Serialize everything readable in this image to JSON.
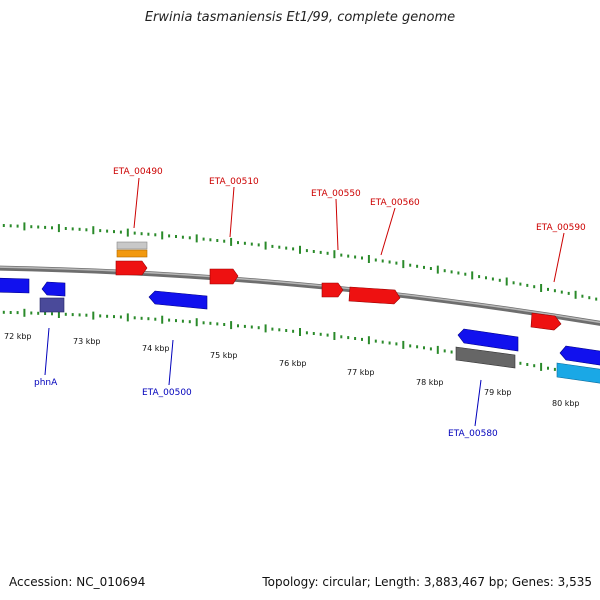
{
  "title": "Erwinia tasmaniensis Et1/99, complete genome",
  "footer": {
    "accession": "Accession: NC_010694",
    "summary": "Topology: circular; Length: 3,883,467 bp; Genes: 3,535"
  },
  "colors": {
    "backbone": "#8a8a8a",
    "tick": "#2a8a2a",
    "forward_gene": "#ee1111",
    "reverse_gene": "#1111ee",
    "label_forward": "#cc0000",
    "label_reverse": "#0000bb"
  },
  "scale_labels": [
    "72 kbp",
    "73 kbp",
    "74 kbp",
    "75 kbp",
    "76 kbp",
    "77 kbp",
    "78 kbp",
    "79 kbp",
    "80 kbp"
  ],
  "forward_labels": [
    "ETA_00490",
    "ETA_00510",
    "ETA_00550",
    "ETA_00560",
    "ETA_00590"
  ],
  "reverse_labels": [
    "phnA",
    "ETA_00500",
    "ETA_00580"
  ]
}
